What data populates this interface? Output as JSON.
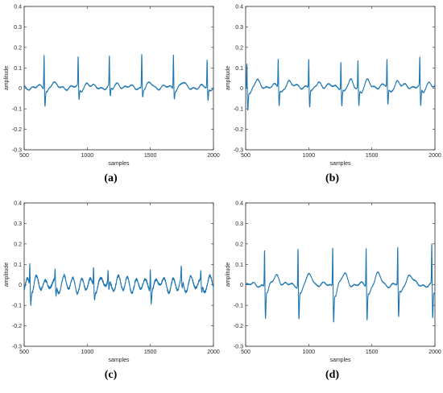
{
  "chart_data": [
    {
      "type": "line",
      "panel_label": "(a)",
      "xlabel": "samples",
      "ylabel": "amplitude",
      "xlim": [
        500,
        2000
      ],
      "ylim": [
        -0.3,
        0.4
      ],
      "xticks": [
        500,
        1000,
        1500,
        2000
      ],
      "yticks": [
        -0.3,
        -0.2,
        -0.1,
        0,
        0.1,
        0.2,
        0.3,
        0.4
      ],
      "line_color": "#1f77b4",
      "grid": false,
      "beats": [
        {
          "x": 658,
          "peak": 0.175,
          "trough": -0.078
        },
        {
          "x": 928,
          "peak": 0.15,
          "trough": -0.06
        },
        {
          "x": 1175,
          "peak": 0.15,
          "trough": -0.05
        },
        {
          "x": 1432,
          "peak": 0.17,
          "trough": -0.04
        },
        {
          "x": 1683,
          "peak": 0.175,
          "trough": -0.04
        },
        {
          "x": 1950,
          "peak": 0.145,
          "trough": -0.06
        }
      ],
      "baseline": 0.005
    },
    {
      "type": "line",
      "panel_label": "(b)",
      "xlabel": "samples",
      "ylabel": "amplitude",
      "xlim": [
        500,
        2000
      ],
      "ylim": [
        -0.3,
        0.4
      ],
      "xticks": [
        500,
        1000,
        1500,
        2000
      ],
      "yticks": [
        -0.3,
        -0.2,
        -0.1,
        0,
        0.1,
        0.2,
        0.3,
        0.4
      ],
      "line_color": "#1f77b4",
      "grid": false,
      "beats": [
        {
          "x": 510,
          "peak": 0.14,
          "trough": -0.09
        },
        {
          "x": 758,
          "peak": 0.15,
          "trough": -0.08
        },
        {
          "x": 1000,
          "peak": 0.15,
          "trough": -0.09
        },
        {
          "x": 1255,
          "peak": 0.145,
          "trough": -0.08
        },
        {
          "x": 1390,
          "peak": 0.145,
          "trough": -0.08
        },
        {
          "x": 1620,
          "peak": 0.145,
          "trough": -0.08
        },
        {
          "x": 1880,
          "peak": 0.15,
          "trough": -0.095
        }
      ],
      "baseline": 0.01
    },
    {
      "type": "line",
      "panel_label": "(c)",
      "xlabel": "samples",
      "ylabel": "amplitude",
      "xlim": [
        500,
        2000
      ],
      "ylim": [
        -0.3,
        0.4
      ],
      "xticks": [
        500,
        1000,
        1500,
        2000
      ],
      "yticks": [
        -0.3,
        -0.2,
        -0.1,
        0,
        0.1,
        0.2,
        0.3,
        0.4
      ],
      "line_color": "#1f77b4",
      "grid": false,
      "beats": [
        {
          "x": 545,
          "peak": 0.115,
          "trough": -0.07
        },
        {
          "x": 745,
          "peak": 0.06,
          "trough": -0.06
        },
        {
          "x": 1050,
          "peak": 0.11,
          "trough": -0.04
        },
        {
          "x": 1165,
          "peak": 0.06,
          "trough": -0.045
        },
        {
          "x": 1500,
          "peak": 0.11,
          "trough": -0.06
        },
        {
          "x": 1745,
          "peak": 0.07,
          "trough": -0.05
        },
        {
          "x": 1900,
          "peak": 0.05,
          "trough": -0.045
        }
      ],
      "baseline": 0.0
    },
    {
      "type": "line",
      "panel_label": "(d)",
      "xlabel": "samples",
      "ylabel": "amplitude",
      "xlim": [
        500,
        2000
      ],
      "ylim": [
        -0.3,
        0.4
      ],
      "xticks": [
        500,
        1000,
        1500,
        2000
      ],
      "yticks": [
        -0.3,
        -0.2,
        -0.1,
        0,
        0.1,
        0.2,
        0.3,
        0.4
      ],
      "line_color": "#1f77b4",
      "grid": false,
      "beats": [
        {
          "x": 650,
          "peak": 0.2,
          "trough": -0.14
        },
        {
          "x": 915,
          "peak": 0.21,
          "trough": -0.145
        },
        {
          "x": 1190,
          "peak": 0.215,
          "trough": -0.15
        },
        {
          "x": 1455,
          "peak": 0.21,
          "trough": -0.145
        },
        {
          "x": 1705,
          "peak": 0.205,
          "trough": -0.145
        },
        {
          "x": 1975,
          "peak": 0.215,
          "trough": -0.15
        }
      ],
      "baseline": 0.0
    }
  ]
}
